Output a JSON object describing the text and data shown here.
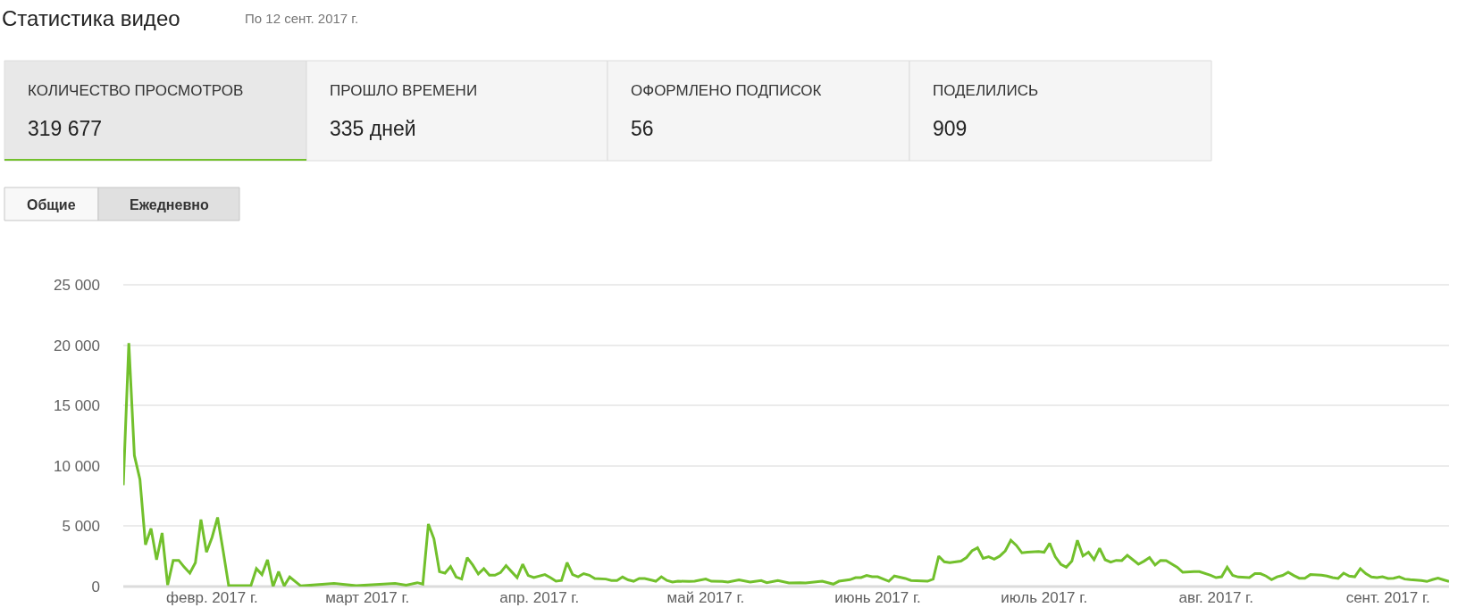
{
  "chart_data": {
    "type": "line",
    "title": "Статистика видео",
    "subtitle": "По 12 сент. 2017 г.",
    "annotations": [
      "КОЛИЧЕСТВО ПРОСМОТРОВ",
      "319 677",
      "ПРОШЛО ВРЕМЕНИ",
      "335 дней",
      "ОФОРМЛЕНО ПОДПИСОК",
      "56",
      "ПОДЕЛИЛИСЬ",
      "909",
      "Общие",
      "Ежедневно"
    ],
    "series": [
      {
        "color": "#72c02c",
        "x": [
          "2017-01-16",
          "2017-01-17",
          "2017-01-18",
          "2017-01-19",
          "2017-01-20",
          "2017-01-21",
          "2017-01-22",
          "2017-01-23",
          "2017-01-24",
          "2017-01-25",
          "2017-01-26",
          "2017-01-27",
          "2017-01-28",
          "2017-01-29",
          "2017-01-30",
          "2017-01-31",
          "2017-02-01",
          "2017-02-02",
          "2017-02-03",
          "2017-02-04",
          "2017-02-08",
          "2017-02-09",
          "2017-02-10",
          "2017-02-11",
          "2017-02-12",
          "2017-02-13",
          "2017-02-14",
          "2017-02-15",
          "2017-02-17",
          "2017-02-23",
          "2017-02-27",
          "2017-03-06",
          "2017-03-08",
          "2017-03-10",
          "2017-03-11",
          "2017-03-12",
          "2017-03-13",
          "2017-03-14",
          "2017-03-15",
          "2017-03-16",
          "2017-03-17",
          "2017-03-18",
          "2017-03-19",
          "2017-03-20",
          "2017-03-21",
          "2017-03-22",
          "2017-03-23",
          "2017-03-24",
          "2017-03-25",
          "2017-03-26",
          "2017-03-27",
          "2017-03-28",
          "2017-03-29",
          "2017-03-30",
          "2017-03-31",
          "2017-04-02",
          "2017-04-03",
          "2017-04-04",
          "2017-04-05",
          "2017-04-06",
          "2017-04-07",
          "2017-04-08",
          "2017-04-09",
          "2017-04-10",
          "2017-04-11",
          "2017-04-13",
          "2017-04-14",
          "2017-04-15",
          "2017-04-16",
          "2017-04-17",
          "2017-04-18",
          "2017-04-19",
          "2017-04-20",
          "2017-04-21",
          "2017-04-22",
          "2017-04-23",
          "2017-04-24",
          "2017-04-25",
          "2017-04-26",
          "2017-04-28",
          "2017-04-29",
          "2017-05-01",
          "2017-05-02",
          "2017-05-04",
          "2017-05-05",
          "2017-05-07",
          "2017-05-09",
          "2017-05-11",
          "2017-05-12",
          "2017-05-14",
          "2017-05-16",
          "2017-05-18",
          "2017-05-19",
          "2017-05-22",
          "2017-05-24",
          "2017-05-25",
          "2017-05-27",
          "2017-05-28",
          "2017-05-29",
          "2017-05-30",
          "2017-05-31",
          "2017-06-01",
          "2017-06-03",
          "2017-06-04",
          "2017-06-06",
          "2017-06-07",
          "2017-06-10",
          "2017-06-11",
          "2017-06-12",
          "2017-06-13",
          "2017-06-14",
          "2017-06-16",
          "2017-06-17",
          "2017-06-18",
          "2017-06-19",
          "2017-06-20",
          "2017-06-21",
          "2017-06-22",
          "2017-06-23",
          "2017-06-24",
          "2017-06-25",
          "2017-06-26",
          "2017-06-27",
          "2017-06-28",
          "2017-06-30",
          "2017-07-01",
          "2017-07-02",
          "2017-07-03",
          "2017-07-04",
          "2017-07-05",
          "2017-07-06",
          "2017-07-07",
          "2017-07-08",
          "2017-07-09",
          "2017-07-10",
          "2017-07-11",
          "2017-07-12",
          "2017-07-13",
          "2017-07-14",
          "2017-07-15",
          "2017-07-16",
          "2017-07-17",
          "2017-07-18",
          "2017-07-19",
          "2017-07-20",
          "2017-07-21",
          "2017-07-22",
          "2017-07-23",
          "2017-07-25",
          "2017-07-26",
          "2017-07-28",
          "2017-07-29",
          "2017-07-31",
          "2017-08-01",
          "2017-08-02",
          "2017-08-03",
          "2017-08-04",
          "2017-08-05",
          "2017-08-07",
          "2017-08-08",
          "2017-08-09",
          "2017-08-10",
          "2017-08-11",
          "2017-08-12",
          "2017-08-13",
          "2017-08-14",
          "2017-08-15",
          "2017-08-16",
          "2017-08-17",
          "2017-08-18",
          "2017-08-20",
          "2017-08-21",
          "2017-08-22",
          "2017-08-23",
          "2017-08-24",
          "2017-08-25",
          "2017-08-26",
          "2017-08-27",
          "2017-08-28",
          "2017-08-29",
          "2017-08-30",
          "2017-08-31",
          "2017-09-01",
          "2017-09-02",
          "2017-09-03",
          "2017-09-04",
          "2017-09-05",
          "2017-09-07",
          "2017-09-08",
          "2017-09-09",
          "2017-09-10",
          "2017-09-11",
          "2017-09-12"
        ],
        "values": [
          8400,
          20170,
          10860,
          8880,
          3460,
          4810,
          2220,
          4440,
          130,
          2170,
          2170,
          1600,
          1110,
          1980,
          5550,
          2840,
          4070,
          5730,
          2960,
          70,
          70,
          1480,
          990,
          2220,
          0,
          1230,
          50,
          790,
          50,
          250,
          70,
          250,
          120,
          320,
          200,
          5180,
          3950,
          1230,
          1110,
          1660,
          790,
          620,
          2400,
          1780,
          1040,
          1480,
          940,
          940,
          1160,
          1730,
          1230,
          740,
          1850,
          920,
          740,
          990,
          740,
          440,
          500,
          1980,
          990,
          810,
          1070,
          940,
          670,
          620,
          500,
          500,
          790,
          550,
          440,
          670,
          670,
          550,
          440,
          810,
          500,
          370,
          440,
          420,
          440,
          620,
          440,
          420,
          370,
          550,
          370,
          500,
          320,
          500,
          300,
          320,
          300,
          440,
          200,
          440,
          570,
          740,
          740,
          920,
          810,
          810,
          440,
          870,
          670,
          500,
          440,
          620,
          2520,
          2050,
          1980,
          2100,
          2400,
          2960,
          3210,
          2340,
          2470,
          2270,
          2520,
          2960,
          3830,
          3410,
          2790,
          2840,
          2910,
          2840,
          3580,
          2470,
          1850,
          1600,
          2100,
          3830,
          2540,
          2840,
          2220,
          3160,
          2220,
          2020,
          2170,
          2150,
          2590,
          2220,
          1850,
          2100,
          2400,
          1780,
          2170,
          2150,
          1600,
          1180,
          1230,
          1230,
          940,
          740,
          810,
          1600,
          920,
          790,
          740,
          1070,
          1070,
          870,
          570,
          810,
          920,
          1180,
          920,
          690,
          690,
          990,
          940,
          870,
          740,
          670,
          1110,
          870,
          810,
          1480,
          1070,
          790,
          740,
          810,
          670,
          690,
          810,
          620,
          570,
          500,
          420,
          570,
          690,
          550,
          420
        ]
      }
    ],
    "xlim": [
      "2017-01-16",
      "2017-09-12"
    ],
    "xticks": [
      {
        "value": "2017-02-01",
        "label": "февр. 2017 г."
      },
      {
        "value": "2017-03-01",
        "label": "март 2017 г."
      },
      {
        "value": "2017-04-01",
        "label": "апр. 2017 г."
      },
      {
        "value": "2017-05-01",
        "label": "май 2017 г."
      },
      {
        "value": "2017-06-01",
        "label": "июнь 2017 г."
      },
      {
        "value": "2017-07-01",
        "label": "июль 2017 г."
      },
      {
        "value": "2017-08-01",
        "label": "авг. 2017 г."
      },
      {
        "value": "2017-09-01",
        "label": "сент. 2017 г."
      }
    ],
    "ylim": [
      0,
      25000
    ],
    "yticks": [
      0,
      {
        "value": 5000,
        "label": "5 000"
      },
      {
        "value": 10000,
        "label": "10 000"
      },
      {
        "value": 15000,
        "label": "15 000"
      },
      {
        "value": 20000,
        "label": "20 000"
      },
      {
        "value": 25000,
        "label": "25 000"
      }
    ],
    "grid": "y",
    "marker": "none",
    "line_style": "solid"
  }
}
